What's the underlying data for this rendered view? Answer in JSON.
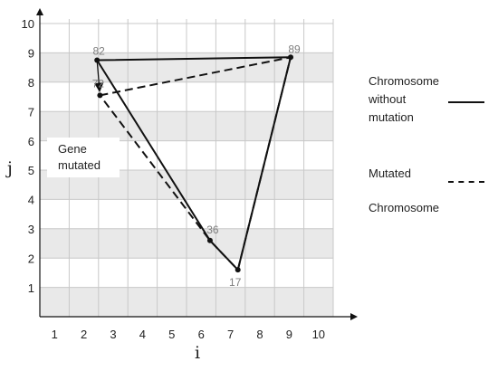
{
  "chart_data": {
    "type": "line",
    "xlabel": "i",
    "ylabel": "j",
    "xlim": [
      0,
      10
    ],
    "ylim": [
      0,
      10
    ],
    "x_ticks": [
      1,
      2,
      3,
      4,
      5,
      6,
      7,
      8,
      9,
      10
    ],
    "y_ticks": [
      1,
      2,
      3,
      4,
      5,
      6,
      7,
      8,
      9,
      10
    ],
    "grid": true,
    "horizontal_bands": "alternating grey rows",
    "points": [
      {
        "label": "82",
        "x": 1.95,
        "y": 8.75
      },
      {
        "label": "72",
        "x": 2.05,
        "y": 7.55
      },
      {
        "label": "89",
        "x": 8.55,
        "y": 8.85
      },
      {
        "label": "36",
        "x": 5.8,
        "y": 2.6
      },
      {
        "label": "17",
        "x": 6.75,
        "y": 1.6
      }
    ],
    "series": [
      {
        "name": "Chromosome without mutation",
        "style": "solid",
        "path": [
          "82",
          "89",
          "17",
          "36",
          "82"
        ]
      },
      {
        "name": "Mutated Chromosome",
        "style": "dashed",
        "path": [
          "72",
          "89",
          "17",
          "36",
          "72"
        ]
      }
    ],
    "legend": [
      {
        "lines": [
          "Chromosome",
          "without",
          "mutation"
        ],
        "style": "solid"
      },
      {
        "lines": [
          "Mutated",
          "Chromosome"
        ],
        "style": "dashed"
      }
    ],
    "annotation": {
      "lines": [
        "Gene",
        "mutated"
      ],
      "arrow_from": "82",
      "arrow_to": "72"
    }
  },
  "colors": {
    "band": "#e9e9e9",
    "grid": "#c8c8c8",
    "line": "#111111",
    "point_label": "#7f7f7f"
  }
}
